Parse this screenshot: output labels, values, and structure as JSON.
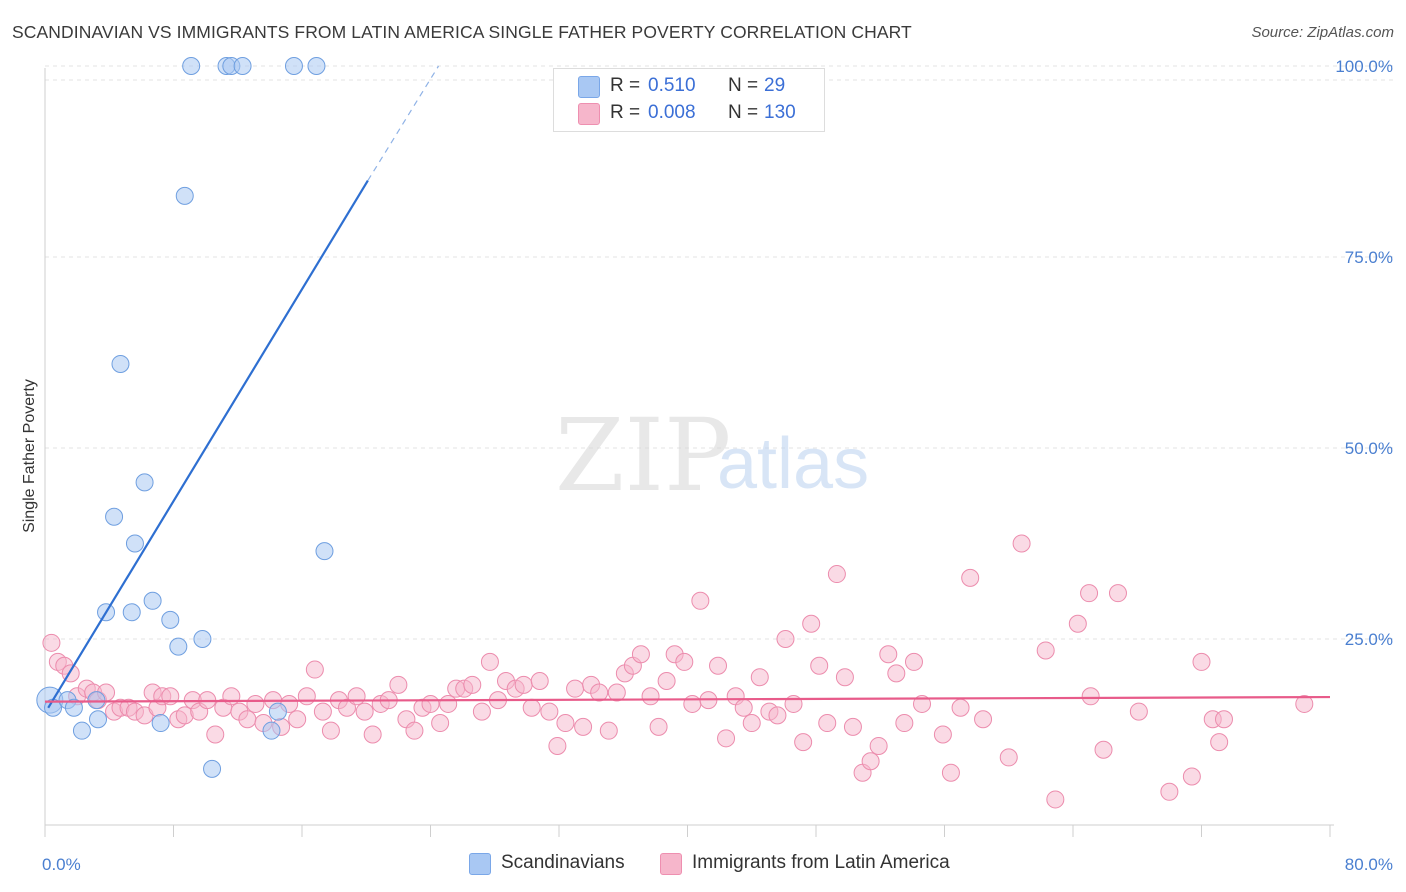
{
  "title": "SCANDINAVIAN VS IMMIGRANTS FROM LATIN AMERICA SINGLE FATHER POVERTY CORRELATION CHART",
  "source": "Source: ZipAtlas.com",
  "watermark": {
    "zip": "ZIP",
    "atlas": "atlas"
  },
  "legend_top": [
    {
      "r_label": "R =",
      "r_value": "0.510",
      "n_label": "N =",
      "n_value": "29",
      "color": "#a9c8f3",
      "border": "#7aa7e8"
    },
    {
      "r_label": "R =",
      "r_value": "0.008",
      "n_label": "N =",
      "n_value": "130",
      "color": "#f6b6cb",
      "border": "#ee8fb0"
    }
  ],
  "chart_data": {
    "type": "scatter",
    "title": "SCANDINAVIAN VS IMMIGRANTS FROM LATIN AMERICA SINGLE FATHER POVERTY CORRELATION CHART",
    "xlabel": "",
    "ylabel": "Single Father Poverty",
    "xlim": [
      0,
      80
    ],
    "ylim": [
      0,
      102
    ],
    "x_tick_labels": [
      "0.0%",
      "80.0%"
    ],
    "y_ticks": [
      25,
      50,
      75,
      100
    ],
    "y_tick_labels": [
      "25.0%",
      "50.0%",
      "75.0%",
      "100.0%"
    ],
    "grid": true,
    "legend_position": "bottom",
    "series": [
      {
        "name": "Scandinavians",
        "color": "#a9c8f3",
        "stroke": "#6f9fe0",
        "trend_color": "#2e6fd1",
        "trend": {
          "x0": 0.2,
          "y0": 16,
          "x1": 20.1,
          "y1": 85,
          "dash_to_x": 24.5,
          "dash_to_y": 100
        },
        "points": [
          [
            0.3,
            17
          ],
          [
            0.5,
            16
          ],
          [
            1.4,
            17
          ],
          [
            1.8,
            16
          ],
          [
            2.3,
            13
          ],
          [
            3.2,
            17
          ],
          [
            3.3,
            14.5
          ],
          [
            3.8,
            28.5
          ],
          [
            4.3,
            41
          ],
          [
            4.7,
            61
          ],
          [
            5.4,
            28.5
          ],
          [
            5.6,
            37.5
          ],
          [
            6.2,
            45.5
          ],
          [
            6.7,
            30
          ],
          [
            7.2,
            14
          ],
          [
            7.8,
            27.5
          ],
          [
            8.3,
            24
          ],
          [
            8.7,
            83
          ],
          [
            9.1,
            100
          ],
          [
            9.8,
            25
          ],
          [
            10.4,
            8
          ],
          [
            11.3,
            100
          ],
          [
            11.6,
            100
          ],
          [
            12.3,
            100
          ],
          [
            14.1,
            13
          ],
          [
            14.5,
            15.5
          ],
          [
            15.5,
            100
          ],
          [
            16.9,
            100
          ],
          [
            17.4,
            36.5
          ]
        ]
      },
      {
        "name": "Immigrants from Latin America",
        "color": "#f6b6cb",
        "stroke": "#ec8cad",
        "trend_color": "#e85b8a",
        "trend": {
          "x0": 0,
          "y0": 16.8,
          "x1": 80,
          "y1": 17.4
        },
        "points": [
          [
            0.4,
            24.5
          ],
          [
            0.8,
            22
          ],
          [
            1.2,
            21.5
          ],
          [
            1.6,
            20.5
          ],
          [
            2.0,
            17.5
          ],
          [
            2.6,
            18.5
          ],
          [
            3.0,
            18
          ],
          [
            3.3,
            17
          ],
          [
            3.8,
            18
          ],
          [
            4.3,
            15.5
          ],
          [
            4.7,
            16
          ],
          [
            5.2,
            16
          ],
          [
            5.6,
            15.5
          ],
          [
            6.2,
            15
          ],
          [
            6.7,
            18
          ],
          [
            7.0,
            16
          ],
          [
            7.3,
            17.5
          ],
          [
            7.8,
            17.5
          ],
          [
            8.3,
            14.5
          ],
          [
            8.7,
            15
          ],
          [
            9.2,
            17
          ],
          [
            9.6,
            15.5
          ],
          [
            10.1,
            17
          ],
          [
            10.6,
            12.5
          ],
          [
            11.1,
            16
          ],
          [
            11.6,
            17.5
          ],
          [
            12.1,
            15.5
          ],
          [
            12.6,
            14.5
          ],
          [
            13.1,
            16.5
          ],
          [
            13.6,
            14
          ],
          [
            14.2,
            17
          ],
          [
            14.7,
            13.5
          ],
          [
            15.2,
            16.5
          ],
          [
            15.7,
            14.5
          ],
          [
            16.3,
            17.5
          ],
          [
            16.8,
            21
          ],
          [
            17.3,
            15.5
          ],
          [
            17.8,
            13
          ],
          [
            18.3,
            17
          ],
          [
            18.8,
            16
          ],
          [
            19.4,
            17.5
          ],
          [
            19.9,
            15.5
          ],
          [
            20.4,
            12.5
          ],
          [
            20.9,
            16.5
          ],
          [
            21.4,
            17
          ],
          [
            22.0,
            19
          ],
          [
            22.5,
            14.5
          ],
          [
            23.0,
            13
          ],
          [
            23.5,
            16
          ],
          [
            24.0,
            16.5
          ],
          [
            24.6,
            14
          ],
          [
            25.1,
            16.5
          ],
          [
            25.6,
            18.5
          ],
          [
            26.1,
            18.5
          ],
          [
            26.6,
            19
          ],
          [
            27.2,
            15.5
          ],
          [
            27.7,
            22
          ],
          [
            28.2,
            17
          ],
          [
            28.7,
            19.5
          ],
          [
            29.3,
            18.5
          ],
          [
            29.8,
            19
          ],
          [
            30.3,
            16
          ],
          [
            30.8,
            19.5
          ],
          [
            31.4,
            15.5
          ],
          [
            31.9,
            11
          ],
          [
            32.4,
            14
          ],
          [
            33.0,
            18.5
          ],
          [
            33.5,
            13.5
          ],
          [
            34.0,
            19
          ],
          [
            34.5,
            18
          ],
          [
            35.1,
            13
          ],
          [
            35.6,
            18
          ],
          [
            36.1,
            20.5
          ],
          [
            36.6,
            21.5
          ],
          [
            37.1,
            23
          ],
          [
            37.7,
            17.5
          ],
          [
            38.2,
            13.5
          ],
          [
            38.7,
            19.5
          ],
          [
            39.2,
            23
          ],
          [
            39.8,
            22
          ],
          [
            40.3,
            16.5
          ],
          [
            40.8,
            30
          ],
          [
            41.3,
            17
          ],
          [
            41.9,
            21.5
          ],
          [
            42.4,
            12
          ],
          [
            43.0,
            17.5
          ],
          [
            43.5,
            16
          ],
          [
            44.0,
            14
          ],
          [
            44.5,
            20
          ],
          [
            45.1,
            15.5
          ],
          [
            45.6,
            15
          ],
          [
            46.1,
            25
          ],
          [
            46.6,
            16.5
          ],
          [
            47.2,
            11.5
          ],
          [
            47.7,
            27
          ],
          [
            48.2,
            21.5
          ],
          [
            48.7,
            14
          ],
          [
            49.3,
            33.5
          ],
          [
            49.8,
            20
          ],
          [
            50.3,
            13.5
          ],
          [
            50.9,
            7.5
          ],
          [
            51.4,
            9
          ],
          [
            51.9,
            11
          ],
          [
            52.5,
            23
          ],
          [
            53.0,
            20.5
          ],
          [
            53.5,
            14
          ],
          [
            54.1,
            22
          ],
          [
            54.6,
            16.5
          ],
          [
            55.9,
            12.5
          ],
          [
            56.4,
            7.5
          ],
          [
            57.0,
            16
          ],
          [
            57.6,
            33
          ],
          [
            58.4,
            14.5
          ],
          [
            60.0,
            9.5
          ],
          [
            60.8,
            37.5
          ],
          [
            62.3,
            23.5
          ],
          [
            62.9,
            4
          ],
          [
            64.3,
            27
          ],
          [
            65.1,
            17.5
          ],
          [
            65.9,
            10.5
          ],
          [
            66.8,
            31
          ],
          [
            68.1,
            15.5
          ],
          [
            70.0,
            5
          ],
          [
            71.4,
            7
          ],
          [
            72.0,
            22
          ],
          [
            72.7,
            14.5
          ],
          [
            73.1,
            11.5
          ],
          [
            78.4,
            16.5
          ],
          [
            73.4,
            14.5
          ],
          [
            65.0,
            31
          ]
        ]
      }
    ]
  },
  "legend_bottom": [
    {
      "label": "Scandinavians",
      "color": "#a9c8f3",
      "border": "#7aa7e8"
    },
    {
      "label": "Immigrants from Latin America",
      "color": "#f6b6cb",
      "border": "#ee8fb0"
    }
  ]
}
